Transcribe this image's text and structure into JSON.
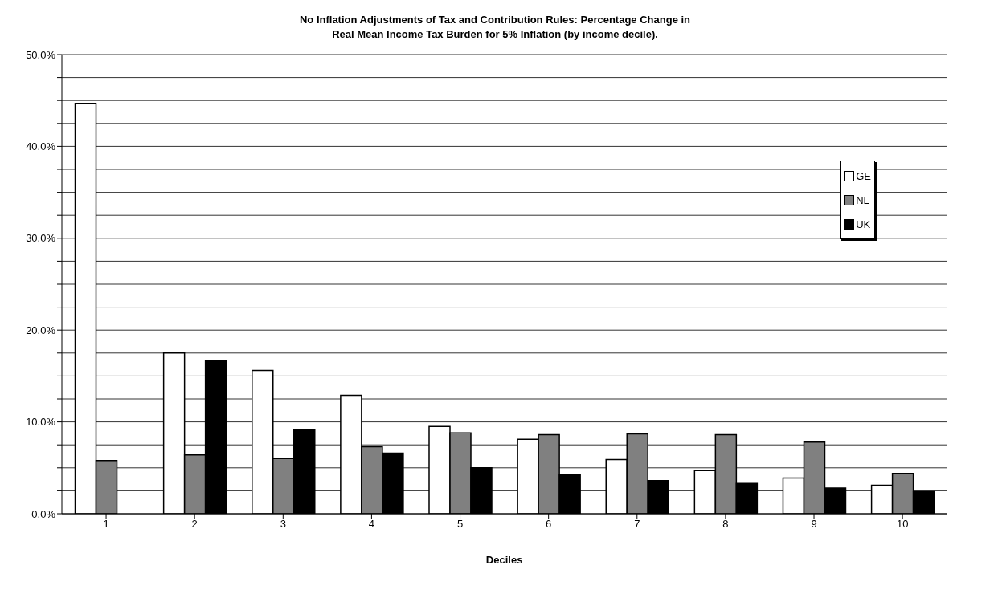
{
  "chart_data": {
    "type": "bar",
    "title": "No Inflation Adjustments of Tax and Contribution Rules: Percentage Change in\nReal Mean Income Tax Burden for 5% Inflation (by income decile).",
    "xlabel": "Deciles",
    "categories": [
      "1",
      "2",
      "3",
      "4",
      "5",
      "6",
      "7",
      "8",
      "9",
      "10"
    ],
    "series": [
      {
        "name": "GE",
        "color": "#ffffff",
        "values": [
          44.7,
          17.5,
          15.6,
          12.9,
          9.5,
          8.1,
          5.9,
          4.7,
          3.9,
          3.1
        ]
      },
      {
        "name": "NL",
        "color": "#808080",
        "values": [
          5.8,
          6.4,
          6.0,
          7.3,
          8.8,
          8.6,
          8.7,
          8.6,
          7.8,
          4.4
        ]
      },
      {
        "name": "UK",
        "color": "#000000",
        "values": [
          null,
          16.7,
          9.2,
          6.6,
          5.0,
          4.3,
          3.6,
          3.3,
          2.8,
          2.4
        ]
      }
    ],
    "ylim": [
      0,
      50
    ],
    "yticks": [
      {
        "value": 0,
        "label": "0.0%"
      },
      {
        "value": 2.5,
        "label": null
      },
      {
        "value": 5,
        "label": null
      },
      {
        "value": 7.5,
        "label": null
      },
      {
        "value": 10,
        "label": "10.0%"
      },
      {
        "value": 12.5,
        "label": null
      },
      {
        "value": 15,
        "label": null
      },
      {
        "value": 17.5,
        "label": null
      },
      {
        "value": 20,
        "label": "20.0%"
      },
      {
        "value": 22.5,
        "label": null
      },
      {
        "value": 25,
        "label": null
      },
      {
        "value": 27.5,
        "label": null
      },
      {
        "value": 30,
        "label": "30.0%"
      },
      {
        "value": 32.5,
        "label": null
      },
      {
        "value": 35,
        "label": null
      },
      {
        "value": 37.5,
        "label": null
      },
      {
        "value": 40,
        "label": "40.0%"
      },
      {
        "value": 42.5,
        "label": null
      },
      {
        "value": 45,
        "label": null
      },
      {
        "value": 47.5,
        "label": null
      },
      {
        "value": 50,
        "label": "50.0%"
      }
    ],
    "grid": "y",
    "legend": "top right"
  }
}
